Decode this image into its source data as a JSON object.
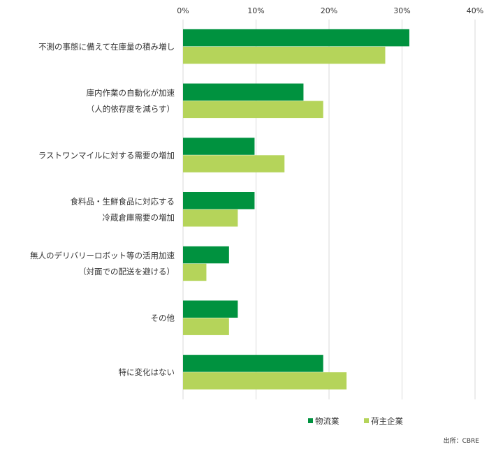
{
  "chart_data": {
    "type": "bar",
    "orientation": "horizontal",
    "categories": [
      [
        "不測の事態に備えて在庫量の積み増し"
      ],
      [
        "庫内作業の自動化が加速",
        "（人的依存度を減らす）"
      ],
      [
        "ラストワンマイルに対する需要の増加"
      ],
      [
        "食料品・生鮮食品に対応する",
        "冷蔵倉庫需要の増加"
      ],
      [
        "無人のデリバリーロボット等の活用加速",
        "（対面での配送を避ける）"
      ],
      [
        "その他"
      ],
      [
        "特に変化はない"
      ]
    ],
    "series": [
      {
        "name": "物流業",
        "color": "#00923f",
        "values": [
          31.0,
          16.5,
          9.8,
          9.8,
          6.3,
          7.5,
          19.2
        ]
      },
      {
        "name": "荷主企業",
        "color": "#b5d45a",
        "values": [
          27.7,
          19.2,
          13.9,
          7.5,
          3.2,
          6.3,
          22.4
        ]
      }
    ],
    "xlim": [
      0,
      40
    ],
    "xticks": [
      "0%",
      "10%",
      "20%",
      "30%",
      "40%"
    ],
    "xtick_values": [
      0,
      10,
      20,
      30,
      40
    ],
    "grid": true,
    "legend_position": "bottom-right"
  },
  "source": "出所：CBRE"
}
